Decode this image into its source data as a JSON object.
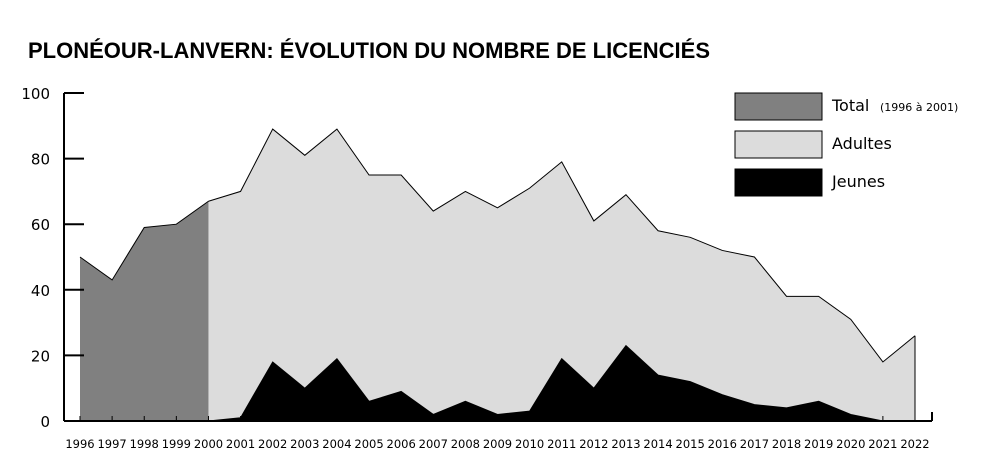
{
  "chart_data": {
    "type": "area",
    "title": "PLONÉOUR-LANVERN: ÉVOLUTION DU NOMBRE DE LICENCIÉS",
    "x": [
      1996,
      1997,
      1998,
      1999,
      2000,
      2001,
      2002,
      2003,
      2004,
      2005,
      2006,
      2007,
      2008,
      2009,
      2010,
      2011,
      2012,
      2013,
      2014,
      2015,
      2016,
      2017,
      2018,
      2019,
      2020,
      2021,
      2022
    ],
    "x_tick_labels": [
      "1996",
      "1997",
      "1998",
      "1999",
      "2000",
      "2001",
      "2002",
      "2003",
      "2004",
      "2005",
      "2006",
      "2007",
      "2008",
      "2009",
      "2010",
      "2011",
      "2012",
      "2013",
      "2014",
      "2015",
      "2016",
      "2017",
      "2018",
      "2019",
      "2020",
      "2021",
      "2022"
    ],
    "ylim": [
      0,
      100
    ],
    "y_ticks": [
      0,
      20,
      40,
      60,
      80,
      100
    ],
    "y_tick_labels": [
      "0",
      "20",
      "40",
      "60",
      "80",
      "100"
    ],
    "grid": false,
    "legend_position": "top-right",
    "series": [
      {
        "name": "Total",
        "legend_note": "(1996 à 2001)",
        "color": "#808080",
        "x": [
          1996,
          1997,
          1998,
          1999,
          2000
        ],
        "values": [
          50,
          43,
          59,
          60,
          67
        ]
      },
      {
        "name": "Adultes",
        "color": "#dcdcdc",
        "x": [
          2000,
          2001,
          2002,
          2003,
          2004,
          2005,
          2006,
          2007,
          2008,
          2009,
          2010,
          2011,
          2012,
          2013,
          2014,
          2015,
          2016,
          2017,
          2018,
          2019,
          2020,
          2021,
          2022
        ],
        "values": [
          67,
          70,
          89,
          81,
          89,
          75,
          75,
          64,
          70,
          65,
          71,
          79,
          61,
          69,
          58,
          56,
          52,
          50,
          38,
          38,
          31,
          18,
          26
        ]
      },
      {
        "name": "Jeunes",
        "color": "#000000",
        "x": [
          2000,
          2001,
          2002,
          2003,
          2004,
          2005,
          2006,
          2007,
          2008,
          2009,
          2010,
          2011,
          2012,
          2013,
          2014,
          2015,
          2016,
          2017,
          2018,
          2019,
          2020,
          2021,
          2022
        ],
        "values": [
          0,
          1,
          18,
          10,
          19,
          6,
          9,
          2,
          6,
          2,
          3,
          19,
          10,
          23,
          14,
          12,
          8,
          5,
          4,
          6,
          2,
          0,
          0
        ]
      }
    ]
  }
}
